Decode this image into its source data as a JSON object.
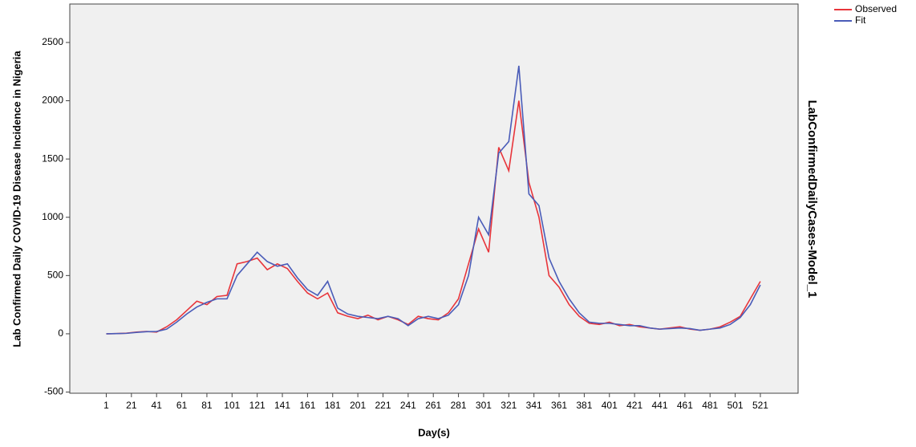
{
  "chart_data": {
    "type": "line",
    "y_label": "Lab Confirmed Daily COVID-19 Disease Incidence in Nigeria",
    "x_label": "Day(s)",
    "right_label": "LabConfirmedDailyCases-Model_1",
    "x": [
      1,
      9,
      17,
      25,
      33,
      41,
      49,
      57,
      65,
      73,
      81,
      89,
      97,
      105,
      113,
      121,
      129,
      137,
      145,
      153,
      161,
      169,
      177,
      185,
      193,
      201,
      209,
      217,
      225,
      233,
      241,
      249,
      257,
      265,
      273,
      281,
      289,
      297,
      305,
      313,
      321,
      329,
      337,
      345,
      353,
      361,
      369,
      377,
      385,
      393,
      401,
      409,
      417,
      425,
      433,
      441,
      449,
      457,
      465,
      473,
      481,
      489,
      497,
      505,
      513,
      521
    ],
    "series": [
      {
        "name": "Observed",
        "color": "#e8353b",
        "values": [
          0,
          2,
          5,
          15,
          20,
          15,
          60,
          120,
          200,
          280,
          250,
          320,
          330,
          600,
          620,
          650,
          550,
          600,
          560,
          450,
          350,
          300,
          350,
          180,
          150,
          130,
          160,
          120,
          150,
          120,
          80,
          150,
          130,
          120,
          180,
          300,
          600,
          900,
          700,
          1600,
          1400,
          2000,
          1300,
          1000,
          500,
          400,
          250,
          150,
          90,
          80,
          100,
          70,
          80,
          60,
          50,
          40,
          50,
          60,
          40,
          30,
          40,
          60,
          100,
          150,
          300,
          450
        ]
      },
      {
        "name": "Fit",
        "color": "#4a5cb8",
        "values": [
          0,
          2,
          4,
          12,
          18,
          20,
          40,
          100,
          170,
          230,
          270,
          300,
          300,
          500,
          600,
          700,
          620,
          580,
          600,
          480,
          380,
          330,
          450,
          220,
          170,
          150,
          140,
          130,
          150,
          130,
          70,
          130,
          150,
          130,
          160,
          250,
          500,
          1000,
          850,
          1550,
          1650,
          2300,
          1200,
          1100,
          650,
          450,
          300,
          180,
          100,
          90,
          90,
          80,
          70,
          70,
          50,
          40,
          45,
          50,
          45,
          30,
          40,
          50,
          80,
          140,
          250,
          420
        ]
      }
    ],
    "xlim": [
      -28,
      551
    ],
    "ylim": [
      -510,
      2830
    ],
    "xticks": [
      1,
      21,
      41,
      61,
      81,
      101,
      121,
      141,
      161,
      181,
      201,
      221,
      241,
      261,
      281,
      301,
      321,
      341,
      361,
      381,
      401,
      421,
      441,
      461,
      481,
      501,
      521
    ],
    "yticks": [
      -500,
      0,
      500,
      1000,
      1500,
      2000,
      2500
    ],
    "legend": "top-right"
  }
}
